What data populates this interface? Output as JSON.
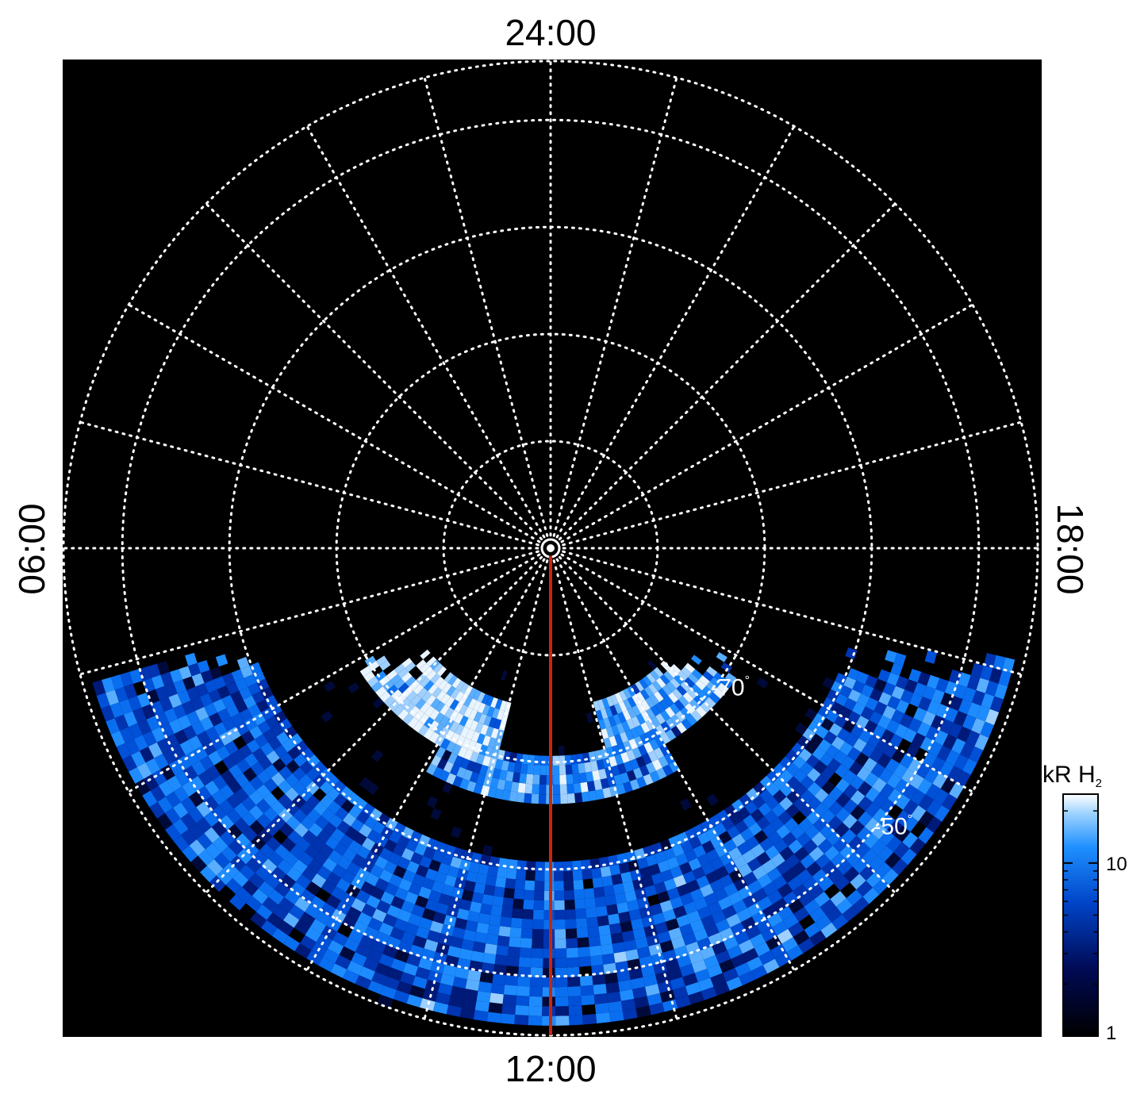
{
  "chart_data": {
    "type": "heatmap",
    "projection": "polar",
    "hemisphere": "south",
    "local_time_labels": {
      "top": "24:00",
      "bottom": "12:00",
      "left": "06:00",
      "right": "18:00"
    },
    "latitude_rings_deg": [
      -90,
      -80,
      -70,
      -60,
      -50
    ],
    "latitude_labels": [
      {
        "text": "-70",
        "lat": -70,
        "local_time_h": 15.3
      },
      {
        "text": "-50",
        "lat": -50,
        "local_time_h": 15.3
      }
    ],
    "meridian_spacing_h": 1,
    "highlight_meridian": {
      "local_time_h": 12,
      "color": "#c8260a"
    },
    "coverage_boundary_offset_from_center_frac": 0.25,
    "colorbar": {
      "title": "kR H",
      "title_subscript": "2",
      "scale": "log",
      "range": [
        1,
        25
      ],
      "ticks": [
        {
          "value": 1,
          "label": "1"
        },
        {
          "value": 10,
          "label": "10"
        }
      ]
    },
    "grid": "dotted white",
    "background": "#000000",
    "features": [
      {
        "name": "main auroral oval (bright)",
        "lat_range": [
          -75,
          -68
        ],
        "local_time_range_h": [
          8,
          11
        ],
        "intensity_kR": 20
      },
      {
        "name": "main auroral oval (moderate)",
        "lat_range": [
          -75,
          -68
        ],
        "local_time_range_h": [
          13,
          16
        ],
        "intensity_kR": 12
      },
      {
        "name": "secondary arc",
        "lat_range": [
          -70,
          -66
        ],
        "local_time_range_h": [
          10,
          14
        ],
        "intensity_kR": 8
      },
      {
        "name": "diffuse dayside emission",
        "lat_range": [
          -60,
          -45
        ],
        "local_time_range_h": [
          7,
          17
        ],
        "intensity_kR": 5
      }
    ]
  }
}
